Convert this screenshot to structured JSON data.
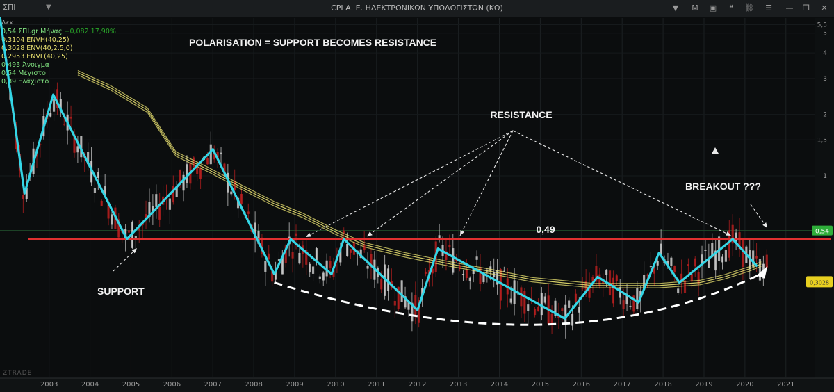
{
  "window": {
    "symbol": "ΣΠΙ",
    "title": "CPI  Α. Ε. ΗΛΕΚΤΡΟΝΙΚΩΝ ΥΠΟΛΟΓΙΣΤΩΝ (ΚΟ)",
    "buttons": {
      "menu": "M"
    },
    "watermark": "ZTRADE"
  },
  "legend": {
    "period": "Δεκ",
    "items": [
      {
        "text": "0,54 ΣΠΙ.gr Μήνας",
        "extra": "+0,082 17,90%",
        "color": "#7fe07f"
      },
      {
        "text": "0,3104 ENVH(40,25)",
        "color": "#e8e070"
      },
      {
        "text": "0,3028 ENV(40,2.5,0)",
        "color": "#e8e070"
      },
      {
        "text": "0,2953 ENVL(40,25)",
        "color": "#e8e070"
      },
      {
        "text": "0,493 Άνοιγμα",
        "color": "#7fe07f"
      },
      {
        "text": "0,54 Μέγιστο",
        "color": "#7fe07f"
      },
      {
        "text": "0,39 Ελάχιστο",
        "color": "#7fe07f"
      }
    ]
  },
  "chart_data": {
    "type": "line",
    "log_scale": true,
    "x_ticks": [
      "2003",
      "2004",
      "2005",
      "2006",
      "2007",
      "2008",
      "2009",
      "2010",
      "2011",
      "2012",
      "2013",
      "2014",
      "2015",
      "2016",
      "2017",
      "2018",
      "2019",
      "2020",
      "2021"
    ],
    "y_ticks": [
      "5,5",
      "5",
      "4",
      "3",
      "2",
      "1,5",
      "1"
    ],
    "ylim": [
      0.25,
      6
    ],
    "price_label": "0,54",
    "envelope_label": "0,3028",
    "level": {
      "value": 0.49,
      "label": "0,49",
      "color": "#e03030"
    },
    "zigzag": {
      "color": "#34d6e6",
      "x": [
        2002.3,
        2002.9,
        2003.6,
        2005.4,
        2007.5,
        2009.0,
        2009.4,
        2010.4,
        2010.7,
        2012.5,
        2013.0,
        2016.1,
        2016.9,
        2017.9,
        2018.4,
        2018.9,
        2020.2,
        2020.8
      ],
      "y": [
        6.0,
        0.82,
        2.5,
        0.49,
        1.35,
        0.33,
        0.49,
        0.33,
        0.49,
        0.22,
        0.44,
        0.2,
        0.32,
        0.24,
        0.42,
        0.3,
        0.49,
        0.36
      ]
    },
    "envelope": {
      "name": "ENV(40,2.5,0)",
      "color": "#e8e070",
      "x": [
        2004.2,
        2005.0,
        2005.9,
        2006.6,
        2007.4,
        2008.2,
        2009.0,
        2009.7,
        2010.5,
        2011.2,
        2012.2,
        2013.3,
        2014.3,
        2015.3,
        2016.0,
        2016.8,
        2017.5,
        2018.4,
        2019.4,
        2020.0,
        2020.6,
        2020.9
      ],
      "y": [
        3.2,
        2.7,
        2.1,
        1.28,
        1.07,
        0.88,
        0.73,
        0.64,
        0.53,
        0.46,
        0.41,
        0.37,
        0.34,
        0.31,
        0.3,
        0.29,
        0.29,
        0.29,
        0.3,
        0.32,
        0.35,
        0.37
      ]
    },
    "annotations": {
      "title": "POLARISATION = SUPPORT BECOMES RESISTANCE",
      "resistance": "RESISTANCE",
      "support": "SUPPORT",
      "breakout": "BREAKOUT ???"
    }
  }
}
